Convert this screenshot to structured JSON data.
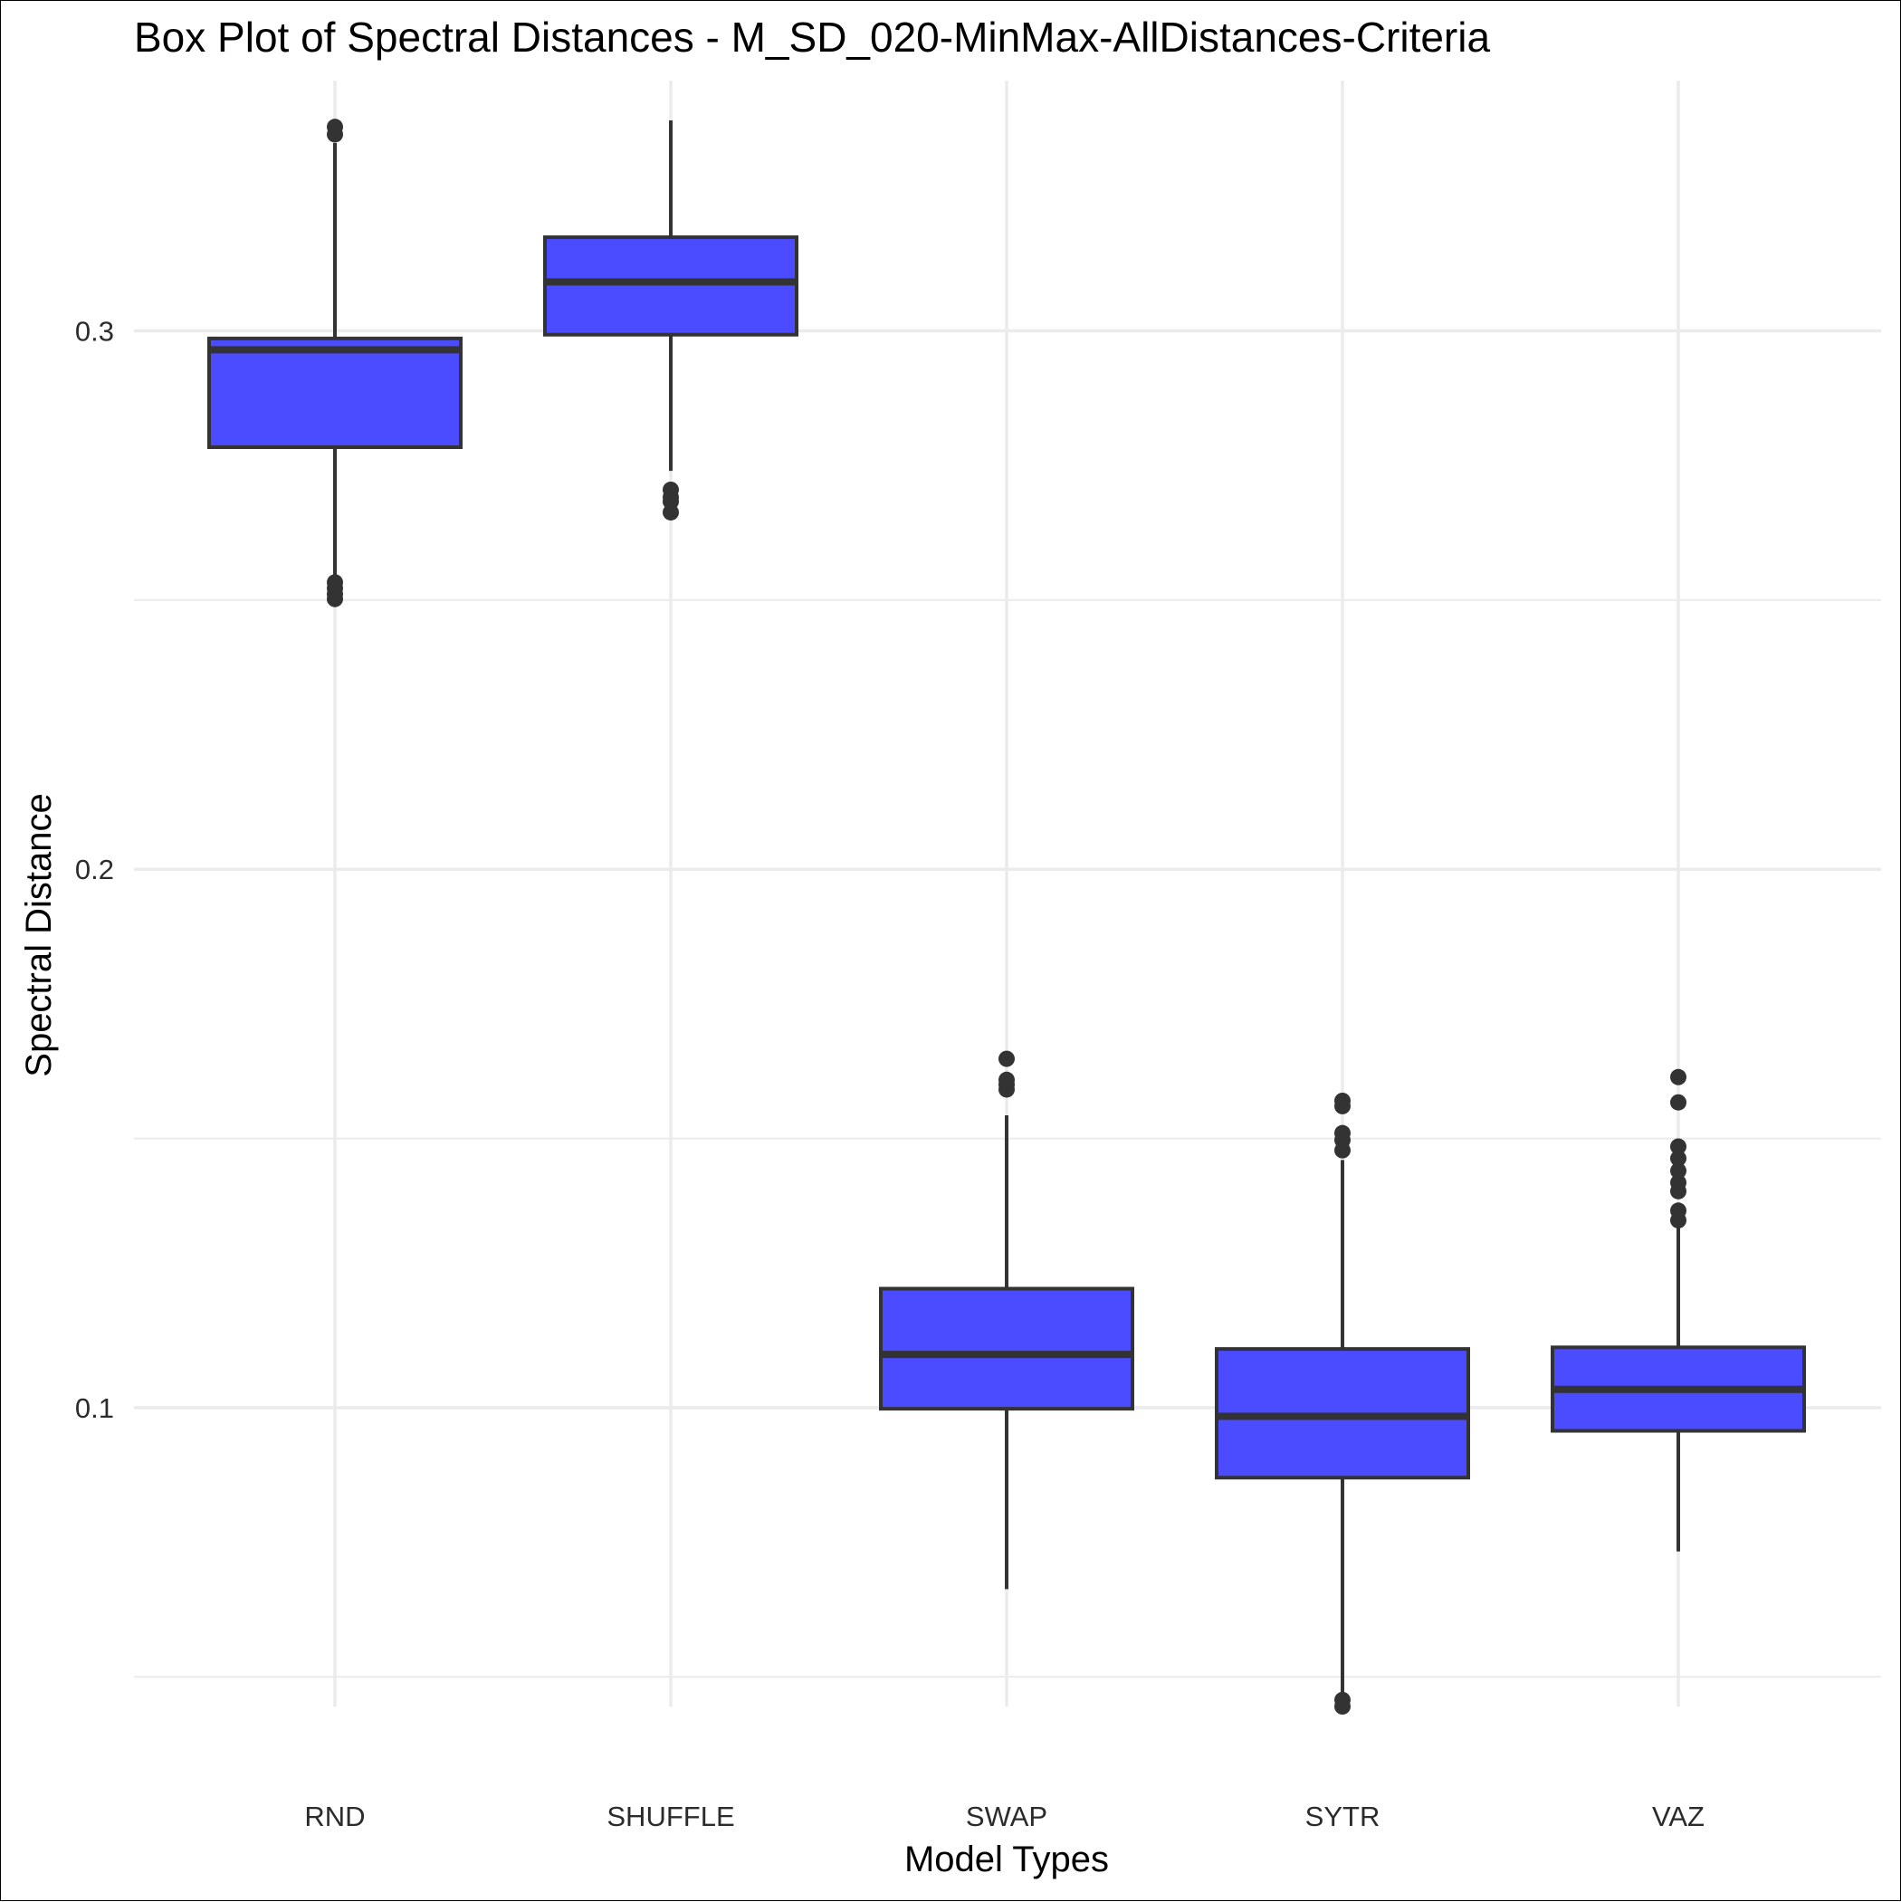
{
  "chart_data": {
    "type": "box",
    "title": "Box Plot of Spectral Distances -  M_SD_020-MinMax-AllDistances-Criteria",
    "xlabel": "Model Types",
    "ylabel": "Spectral Distance",
    "categories": [
      "RND",
      "SHUFFLE",
      "SWAP",
      "SYTR",
      "VAZ"
    ],
    "ylim": [
      0.0445,
      0.3465
    ],
    "y_ticks": [
      0.1,
      0.2,
      0.3
    ],
    "y_tick_labels": [
      "0.1",
      "0.2",
      "0.3"
    ],
    "grid": true,
    "box_color": "#4b4bff",
    "line_color": "#333333",
    "boxes": [
      {
        "category": "RND",
        "whisker_low": 0.2547,
        "q1": 0.2784,
        "median": 0.2965,
        "q3": 0.2986,
        "whisker_high": 0.3349,
        "outliers": [
          0.3365,
          0.3379,
          0.2533,
          0.2522,
          0.2511,
          0.2502
        ]
      },
      {
        "category": "SHUFFLE",
        "whisker_low": 0.274,
        "q1": 0.2993,
        "median": 0.3091,
        "q3": 0.3174,
        "whisker_high": 0.3391,
        "outliers": [
          0.2705,
          0.2691,
          0.2683,
          0.2663
        ]
      },
      {
        "category": "SWAP",
        "whisker_low": 0.0663,
        "q1": 0.0998,
        "median": 0.1099,
        "q3": 0.1221,
        "whisker_high": 0.1543,
        "outliers": [
          0.1648,
          0.1609,
          0.16,
          0.1591
        ]
      },
      {
        "category": "SYTR",
        "whisker_low": 0.0465,
        "q1": 0.087,
        "median": 0.0984,
        "q3": 0.1109,
        "whisker_high": 0.146,
        "outliers": [
          0.157,
          0.156,
          0.151,
          0.1497,
          0.1478,
          0.0457,
          0.0445
        ]
      },
      {
        "category": "VAZ",
        "whisker_low": 0.0733,
        "q1": 0.0957,
        "median": 0.1034,
        "q3": 0.1112,
        "whisker_high": 0.1341,
        "outliers": [
          0.1614,
          0.1567,
          0.1485,
          0.1463,
          0.144,
          0.1418,
          0.1402,
          0.1366,
          0.1348
        ]
      }
    ]
  }
}
